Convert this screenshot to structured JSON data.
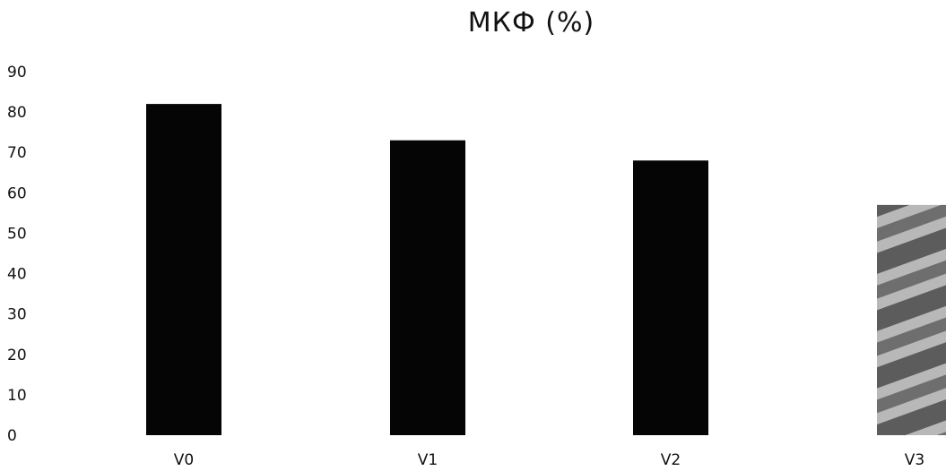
{
  "chart_data": {
    "type": "bar",
    "title": "МКФ (%)",
    "categories": [
      "V0",
      "V1",
      "V2",
      "V3"
    ],
    "values": [
      82,
      73,
      68,
      57
    ],
    "xlabel": "",
    "ylabel": "",
    "ylim": [
      0,
      90
    ],
    "yticks": [
      "0",
      "10",
      "20",
      "30",
      "40",
      "50",
      "60",
      "70",
      "80",
      "90"
    ],
    "grid": false,
    "legend": "none",
    "colors": {
      "bar": "#050505",
      "bar_last": "#8a8a8a",
      "text": "#111111"
    }
  }
}
